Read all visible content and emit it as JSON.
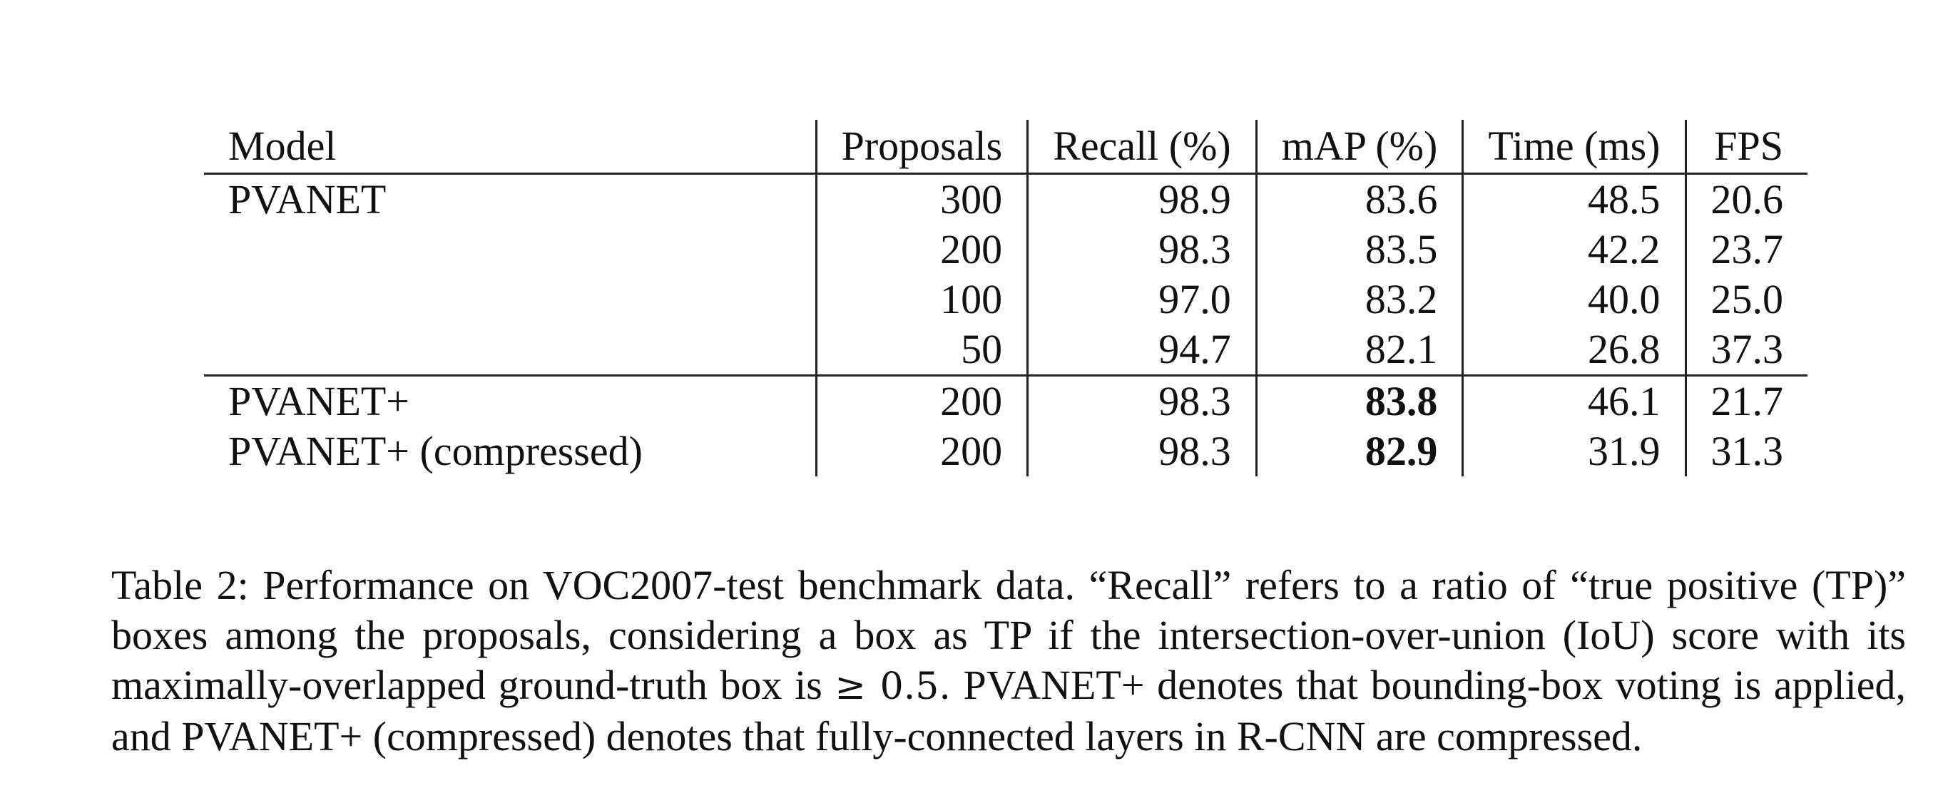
{
  "table": {
    "headers": {
      "model": "Model",
      "proposals": "Proposals",
      "recall": "Recall (%)",
      "map": "mAP (%)",
      "time": "Time (ms)",
      "fps": "FPS"
    },
    "rows": [
      {
        "model": "PVANET",
        "proposals": "300",
        "recall": "98.9",
        "map": "83.6",
        "time": "48.5",
        "fps": "20.6"
      },
      {
        "model": "",
        "proposals": "200",
        "recall": "98.3",
        "map": "83.5",
        "time": "42.2",
        "fps": "23.7"
      },
      {
        "model": "",
        "proposals": "100",
        "recall": "97.0",
        "map": "83.2",
        "time": "40.0",
        "fps": "25.0"
      },
      {
        "model": "",
        "proposals": "50",
        "recall": "94.7",
        "map": "82.1",
        "time": "26.8",
        "fps": "37.3"
      },
      {
        "model": "PVANET+",
        "proposals": "200",
        "recall": "98.3",
        "map": "83.8",
        "time": "46.1",
        "fps": "21.7"
      },
      {
        "model": "PVANET+ (compressed)",
        "proposals": "200",
        "recall": "98.3",
        "map": "82.9",
        "time": "31.9",
        "fps": "31.3"
      }
    ]
  },
  "caption": {
    "label": "Table 2:",
    "part1": "Performance on VOC2007-test benchmark data. “Recall” refers to a ratio of “true positive (TP)” boxes among the proposals, considering a box as TP if the intersection-over-union (IoU) score with its maximally-overlapped ground-truth box is",
    "symbol": "≥ 0.5.",
    "part2": "PVANET+ denotes that bounding-box voting is applied, and PVANET+ (compressed) denotes that fully-connected layers in R-CNN are compressed."
  }
}
